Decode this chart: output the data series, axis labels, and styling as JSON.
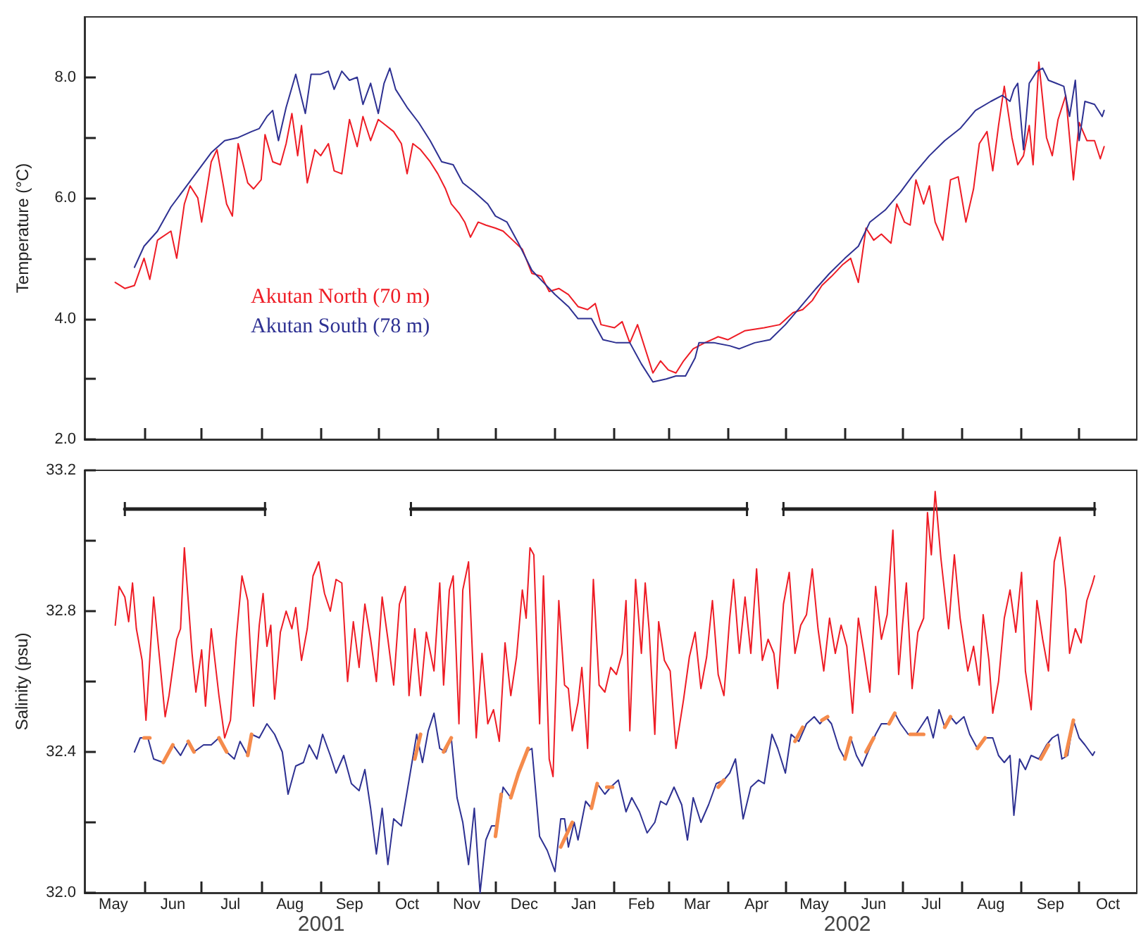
{
  "chart_data": [
    {
      "type": "line",
      "ylabel": "Temperature (°C)",
      "xlim": [
        "2001-05-01",
        "2002-10-31"
      ],
      "ylim": [
        2,
        9
      ],
      "tick_labels": "y",
      "grid": false,
      "legend": "left",
      "marker": "none",
      "line_style": "solid",
      "yticks": [
        {
          "value": 2,
          "label": "2.0"
        },
        {
          "value": 3,
          "label": null
        },
        {
          "value": 4,
          "label": "4.0"
        },
        {
          "value": 5,
          "label": null
        },
        {
          "value": 6,
          "label": "6.0"
        },
        {
          "value": 7,
          "label": null
        },
        {
          "value": 8,
          "label": "8.0"
        }
      ],
      "xticks": [
        {
          "value": "2001-06-01",
          "label": null
        },
        {
          "value": "2001-07-01",
          "label": null
        },
        {
          "value": "2001-08-01",
          "label": null
        },
        {
          "value": "2001-09-01",
          "label": null
        },
        {
          "value": "2001-10-01",
          "label": null
        },
        {
          "value": "2001-11-01",
          "label": null
        },
        {
          "value": "2001-12-01",
          "label": null
        },
        {
          "value": "2002-01-01",
          "label": null
        },
        {
          "value": "2002-02-01",
          "label": null
        },
        {
          "value": "2002-03-01",
          "label": null
        },
        {
          "value": "2002-04-01",
          "label": null
        },
        {
          "value": "2002-05-01",
          "label": null
        },
        {
          "value": "2002-06-01",
          "label": null
        },
        {
          "value": "2002-07-01",
          "label": null
        },
        {
          "value": "2002-08-01",
          "label": null
        },
        {
          "value": "2002-09-01",
          "label": null
        },
        {
          "value": "2002-10-01",
          "label": null
        }
      ],
      "series": [
        {
          "name": "Akutan North (70 m)",
          "color": "#ee1c25",
          "x": [
            "2001-05-17",
            "2001-05-22",
            "2001-05-27",
            "2001-06-01",
            "2001-06-04",
            "2001-06-08",
            "2001-06-15",
            "2001-06-18",
            "2001-06-22",
            "2001-06-25",
            "2001-06-29",
            "2001-07-01",
            "2001-07-06",
            "2001-07-09",
            "2001-07-14",
            "2001-07-17",
            "2001-07-20",
            "2001-07-25",
            "2001-07-28",
            "2001-08-01",
            "2001-08-03",
            "2001-08-07",
            "2001-08-11",
            "2001-08-14",
            "2001-08-17",
            "2001-08-20",
            "2001-08-22",
            "2001-08-25",
            "2001-08-29",
            "2001-09-01",
            "2001-09-05",
            "2001-09-08",
            "2001-09-12",
            "2001-09-16",
            "2001-09-20",
            "2001-09-23",
            "2001-09-27",
            "2001-10-01",
            "2001-10-05",
            "2001-10-09",
            "2001-10-13",
            "2001-10-16",
            "2001-10-19",
            "2001-10-23",
            "2001-10-28",
            "2001-11-01",
            "2001-11-05",
            "2001-11-08",
            "2001-11-12",
            "2001-11-15",
            "2001-11-18",
            "2001-11-22",
            "2001-11-26",
            "2001-12-01",
            "2001-12-05",
            "2001-12-10",
            "2001-12-15",
            "2001-12-20",
            "2001-12-25",
            "2001-12-29",
            "2002-01-03",
            "2002-01-08",
            "2002-01-13",
            "2002-01-18",
            "2002-01-22",
            "2002-01-25",
            "2002-02-01",
            "2002-02-05",
            "2002-02-09",
            "2002-02-13",
            "2002-02-17",
            "2002-02-21",
            "2002-02-25",
            "2002-03-01",
            "2002-03-05",
            "2002-03-09",
            "2002-03-14",
            "2002-03-20",
            "2002-03-27",
            "2002-04-01",
            "2002-04-10",
            "2002-04-20",
            "2002-04-28",
            "2002-05-05",
            "2002-05-10",
            "2002-05-15",
            "2002-05-20",
            "2002-05-25",
            "2002-05-31",
            "2002-06-04",
            "2002-06-08",
            "2002-06-12",
            "2002-06-16",
            "2002-06-20",
            "2002-06-25",
            "2002-06-28",
            "2002-07-02",
            "2002-07-05",
            "2002-07-08",
            "2002-07-12",
            "2002-07-15",
            "2002-07-18",
            "2002-07-22",
            "2002-07-26",
            "2002-07-30",
            "2002-08-03",
            "2002-08-07",
            "2002-08-10",
            "2002-08-14",
            "2002-08-17",
            "2002-08-20",
            "2002-08-23",
            "2002-08-27",
            "2002-08-30",
            "2002-09-02",
            "2002-09-05",
            "2002-09-07",
            "2002-09-10",
            "2002-09-14",
            "2002-09-17",
            "2002-09-20",
            "2002-09-24",
            "2002-09-28",
            "2002-10-01",
            "2002-10-05",
            "2002-10-09",
            "2002-10-12",
            "2002-10-14"
          ],
          "values": [
            4.6,
            4.5,
            4.55,
            5.0,
            4.65,
            5.3,
            5.45,
            5.0,
            5.9,
            6.2,
            6.0,
            5.6,
            6.6,
            6.8,
            5.9,
            5.7,
            6.9,
            6.25,
            6.15,
            6.3,
            7.05,
            6.6,
            6.55,
            6.9,
            7.4,
            6.7,
            7.2,
            6.25,
            6.8,
            6.7,
            6.9,
            6.45,
            6.4,
            7.3,
            6.85,
            7.35,
            6.95,
            7.3,
            7.2,
            7.1,
            6.9,
            6.4,
            6.9,
            6.8,
            6.6,
            6.4,
            6.15,
            5.9,
            5.75,
            5.6,
            5.35,
            5.6,
            5.55,
            5.5,
            5.45,
            5.3,
            5.15,
            4.75,
            4.7,
            4.45,
            4.5,
            4.4,
            4.2,
            4.15,
            4.25,
            3.9,
            3.85,
            3.95,
            3.6,
            3.9,
            3.5,
            3.1,
            3.3,
            3.15,
            3.1,
            3.3,
            3.5,
            3.6,
            3.7,
            3.65,
            3.8,
            3.85,
            3.9,
            4.1,
            4.15,
            4.3,
            4.55,
            4.7,
            4.9,
            5.0,
            4.6,
            5.5,
            5.3,
            5.4,
            5.25,
            5.9,
            5.6,
            5.55,
            6.3,
            5.9,
            6.2,
            5.6,
            5.3,
            6.3,
            6.35,
            5.6,
            6.15,
            6.9,
            7.1,
            6.45,
            7.2,
            7.85,
            7.0,
            6.55,
            6.7,
            7.2,
            6.55,
            8.25,
            7.0,
            6.7,
            7.3,
            7.7,
            6.3,
            7.25,
            6.95,
            6.95,
            6.65,
            6.85
          ]
        },
        {
          "name": "Akutan South (78 m)",
          "color": "#2e3192",
          "x": [
            "2001-05-27",
            "2001-06-01",
            "2001-06-08",
            "2001-06-15",
            "2001-06-22",
            "2001-06-29",
            "2001-07-06",
            "2001-07-13",
            "2001-07-20",
            "2001-07-27",
            "2001-07-31",
            "2001-08-04",
            "2001-08-07",
            "2001-08-10",
            "2001-08-14",
            "2001-08-19",
            "2001-08-24",
            "2001-08-27",
            "2001-09-01",
            "2001-09-05",
            "2001-09-08",
            "2001-09-12",
            "2001-09-16",
            "2001-09-20",
            "2001-09-23",
            "2001-09-27",
            "2001-10-01",
            "2001-10-04",
            "2001-10-07",
            "2001-10-10",
            "2001-10-16",
            "2001-10-22",
            "2001-10-28",
            "2001-11-03",
            "2001-11-09",
            "2001-11-14",
            "2001-11-20",
            "2001-11-27",
            "2001-12-01",
            "2001-12-07",
            "2001-12-13",
            "2001-12-20",
            "2001-12-26",
            "2002-01-01",
            "2002-01-08",
            "2002-01-13",
            "2002-01-20",
            "2002-01-26",
            "2002-02-02",
            "2002-02-09",
            "2002-02-15",
            "2002-02-21",
            "2002-02-28",
            "2002-03-05",
            "2002-03-10",
            "2002-03-15",
            "2002-03-17",
            "2002-03-25",
            "2002-04-02",
            "2002-04-07",
            "2002-04-15",
            "2002-04-23",
            "2002-05-01",
            "2002-05-09",
            "2002-05-17",
            "2002-05-24",
            "2002-06-01",
            "2002-06-08",
            "2002-06-14",
            "2002-06-22",
            "2002-06-30",
            "2002-07-07",
            "2002-07-15",
            "2002-07-23",
            "2002-07-31",
            "2002-08-08",
            "2002-08-16",
            "2002-08-22",
            "2002-08-26",
            "2002-08-28",
            "2002-08-30",
            "2002-09-02",
            "2002-09-05",
            "2002-09-09",
            "2002-09-12",
            "2002-09-15",
            "2002-09-19",
            "2002-09-23",
            "2002-09-26",
            "2002-09-29",
            "2002-10-01",
            "2002-10-04",
            "2002-10-09",
            "2002-10-13",
            "2002-10-14"
          ],
          "values": [
            4.85,
            5.2,
            5.45,
            5.85,
            6.15,
            6.45,
            6.75,
            6.95,
            7.0,
            7.1,
            7.15,
            7.35,
            7.45,
            6.95,
            7.5,
            8.05,
            7.4,
            8.05,
            8.05,
            8.1,
            7.8,
            8.1,
            7.95,
            8.0,
            7.55,
            7.9,
            7.4,
            7.9,
            8.15,
            7.8,
            7.5,
            7.25,
            6.95,
            6.6,
            6.55,
            6.25,
            6.1,
            5.9,
            5.7,
            5.6,
            5.25,
            4.8,
            4.6,
            4.4,
            4.2,
            4.0,
            4.0,
            3.65,
            3.6,
            3.6,
            3.25,
            2.95,
            3.0,
            3.05,
            3.05,
            3.35,
            3.6,
            3.6,
            3.55,
            3.5,
            3.6,
            3.65,
            3.9,
            4.2,
            4.5,
            4.75,
            5.0,
            5.2,
            5.6,
            5.8,
            6.1,
            6.4,
            6.7,
            6.95,
            7.15,
            7.45,
            7.6,
            7.7,
            7.6,
            7.8,
            7.9,
            6.8,
            7.9,
            8.1,
            8.15,
            7.95,
            7.9,
            7.85,
            7.35,
            7.95,
            6.95,
            7.6,
            7.55,
            7.35,
            7.45
          ]
        }
      ]
    },
    {
      "type": "line",
      "ylabel": "Salinity (psu)",
      "xlim": [
        "2001-05-01",
        "2002-10-31"
      ],
      "ylim": [
        32.0,
        33.2
      ],
      "grid": false,
      "marker": "none",
      "line_style": "solid",
      "yticks": [
        {
          "value": 32.0,
          "label": "32.0"
        },
        {
          "value": 32.2,
          "label": null
        },
        {
          "value": 32.4,
          "label": "32.4"
        },
        {
          "value": 32.6,
          "label": null
        },
        {
          "value": 32.8,
          "label": "32.8"
        },
        {
          "value": 33.0,
          "label": null
        },
        {
          "value": 33.2,
          "label": "33.2"
        }
      ],
      "xticks": [
        {
          "value": "2001-06-01",
          "label": null
        },
        {
          "value": "2001-07-01",
          "label": null
        },
        {
          "value": "2001-08-01",
          "label": null
        },
        {
          "value": "2001-09-01",
          "label": null
        },
        {
          "value": "2001-10-01",
          "label": null
        },
        {
          "value": "2001-11-01",
          "label": null
        },
        {
          "value": "2001-12-01",
          "label": null
        },
        {
          "value": "2002-01-01",
          "label": null
        },
        {
          "value": "2002-02-01",
          "label": null
        },
        {
          "value": "2002-03-01",
          "label": null
        },
        {
          "value": "2002-04-01",
          "label": null
        },
        {
          "value": "2002-05-01",
          "label": null
        },
        {
          "value": "2002-06-01",
          "label": null
        },
        {
          "value": "2002-07-01",
          "label": null
        },
        {
          "value": "2002-08-01",
          "label": null
        },
        {
          "value": "2002-09-01",
          "label": null
        },
        {
          "value": "2002-10-01",
          "label": null
        },
        {
          "value": "2001-05-16",
          "label": "May"
        },
        {
          "value": "2001-06-16",
          "label": "Jun"
        },
        {
          "value": "2001-07-16",
          "label": "Jul"
        },
        {
          "value": "2001-08-16",
          "label": "Aug"
        },
        {
          "value": "2001-09-16",
          "label": "Sep"
        },
        {
          "value": "2001-10-16",
          "label": "Oct"
        },
        {
          "value": "2001-11-16",
          "label": "Nov"
        },
        {
          "value": "2001-12-16",
          "label": "Dec"
        },
        {
          "value": "2002-01-16",
          "label": "Jan"
        },
        {
          "value": "2002-02-15",
          "label": "Feb"
        },
        {
          "value": "2002-03-16",
          "label": "Mar"
        },
        {
          "value": "2002-04-16",
          "label": "Apr"
        },
        {
          "value": "2002-05-16",
          "label": "May"
        },
        {
          "value": "2002-06-16",
          "label": "Jun"
        },
        {
          "value": "2002-07-16",
          "label": "Jul"
        },
        {
          "value": "2002-08-16",
          "label": "Aug"
        },
        {
          "value": "2002-09-16",
          "label": "Sep"
        },
        {
          "value": "2002-10-16",
          "label": "Oct"
        }
      ],
      "annotations": [
        "2001",
        "2002"
      ],
      "series": [
        {
          "color": "#222222",
          "x": [
            "2001-05-22",
            "2001-08-03",
            "2001-09-01",
            "2001-10-18",
            "2002-04-11",
            "2002-04-20",
            "2002-04-30",
            "2002-10-09"
          ],
          "values": [
            33.09,
            33.09,
            null,
            33.09,
            33.09,
            null,
            33.09,
            33.09
          ],
          "errors": [
            0.02,
            0.02,
            null,
            0.02,
            0.02,
            null,
            0.02,
            0.02
          ]
        },
        {
          "color": "#ee1c25",
          "x": [
            "2001-05-17",
            "2001-05-19",
            "2001-05-22",
            "2001-05-24",
            "2001-05-26",
            "2001-05-28",
            "2001-05-31",
            "2001-06-02",
            "2001-06-06",
            "2001-06-09",
            "2001-06-12",
            "2001-06-14",
            "2001-06-18",
            "2001-06-20",
            "2001-06-22",
            "2001-06-26",
            "2001-06-28",
            "2001-07-01",
            "2001-07-03",
            "2001-07-06",
            "2001-07-10",
            "2001-07-13",
            "2001-07-16",
            "2001-07-19",
            "2001-07-22",
            "2001-07-25",
            "2001-07-28",
            "2001-07-31",
            "2001-08-02",
            "2001-08-04",
            "2001-08-06",
            "2001-08-08",
            "2001-08-11",
            "2001-08-14",
            "2001-08-17",
            "2001-08-19",
            "2001-08-22",
            "2001-08-25",
            "2001-08-28",
            "2001-08-31",
            "2001-09-03",
            "2001-09-06",
            "2001-09-09",
            "2001-09-12",
            "2001-09-15",
            "2001-09-18",
            "2001-09-21",
            "2001-09-24",
            "2001-09-27",
            "2001-09-30",
            "2001-10-03",
            "2001-10-06",
            "2001-10-09",
            "2001-10-12",
            "2001-10-15",
            "2001-10-17",
            "2001-10-20",
            "2001-10-23",
            "2001-10-26",
            "2001-10-30",
            "2001-11-02",
            "2001-11-04",
            "2001-11-07",
            "2001-11-09",
            "2001-11-12",
            "2001-11-14",
            "2001-11-17",
            "2001-11-19",
            "2001-11-21",
            "2001-11-24",
            "2001-11-27",
            "2001-11-30",
            "2001-12-03",
            "2001-12-06",
            "2001-12-09",
            "2001-12-12",
            "2001-12-15",
            "2001-12-17",
            "2001-12-19",
            "2001-12-21",
            "2001-12-24",
            "2001-12-26",
            "2001-12-29",
            "2001-12-31",
            "2002-01-03",
            "2002-01-06",
            "2002-01-08",
            "2002-01-10",
            "2002-01-13",
            "2002-01-15",
            "2002-01-18",
            "2002-01-21",
            "2002-01-24",
            "2002-01-27",
            "2002-01-30",
            "2002-02-02",
            "2002-02-05",
            "2002-02-07",
            "2002-02-09",
            "2002-02-12",
            "2002-02-15",
            "2002-02-17",
            "2002-02-19",
            "2002-02-22",
            "2002-02-24",
            "2002-02-27",
            "2002-03-02",
            "2002-03-05",
            "2002-03-09",
            "2002-03-12",
            "2002-03-15",
            "2002-03-18",
            "2002-03-21",
            "2002-03-24",
            "2002-03-27",
            "2002-03-30",
            "2002-04-02",
            "2002-04-04",
            "2002-04-07",
            "2002-04-10",
            "2002-04-13",
            "2002-04-16",
            "2002-04-19",
            "2002-04-22",
            "2002-04-25",
            "2002-04-27",
            "2002-04-30",
            "2002-05-03",
            "2002-05-06",
            "2002-05-09",
            "2002-05-12",
            "2002-05-15",
            "2002-05-18",
            "2002-05-21",
            "2002-05-24",
            "2002-05-27",
            "2002-05-30",
            "2002-06-02",
            "2002-06-05",
            "2002-06-08",
            "2002-06-11",
            "2002-06-14",
            "2002-06-17",
            "2002-06-20",
            "2002-06-23",
            "2002-06-26",
            "2002-06-29",
            "2002-07-01",
            "2002-07-03",
            "2002-07-06",
            "2002-07-09",
            "2002-07-12",
            "2002-07-14",
            "2002-07-16",
            "2002-07-18",
            "2002-07-21",
            "2002-07-25",
            "2002-07-28",
            "2002-07-31",
            "2002-08-04",
            "2002-08-07",
            "2002-08-10",
            "2002-08-12",
            "2002-08-15",
            "2002-08-17",
            "2002-08-20",
            "2002-08-23",
            "2002-08-26",
            "2002-08-29",
            "2002-09-01",
            "2002-09-03",
            "2002-09-06",
            "2002-09-09",
            "2002-09-12",
            "2002-09-15",
            "2002-09-18",
            "2002-09-21",
            "2002-09-24",
            "2002-09-26",
            "2002-09-29",
            "2002-10-02",
            "2002-10-05",
            "2002-10-08",
            "2002-10-09"
          ],
          "values": [
            32.76,
            32.87,
            32.84,
            32.77,
            32.88,
            32.75,
            32.66,
            32.49,
            32.84,
            32.67,
            32.5,
            32.56,
            32.72,
            32.75,
            32.98,
            32.68,
            32.57,
            32.69,
            32.53,
            32.75,
            32.56,
            32.44,
            32.49,
            32.72,
            32.9,
            32.83,
            32.53,
            32.76,
            32.85,
            32.7,
            32.76,
            32.55,
            32.74,
            32.8,
            32.75,
            32.81,
            32.66,
            32.75,
            32.9,
            32.94,
            32.85,
            32.8,
            32.89,
            32.88,
            32.6,
            32.77,
            32.64,
            32.82,
            32.72,
            32.6,
            32.84,
            32.72,
            32.59,
            32.82,
            32.87,
            32.56,
            32.75,
            32.56,
            32.74,
            32.63,
            32.88,
            32.59,
            32.86,
            32.9,
            32.48,
            32.86,
            32.94,
            32.68,
            32.44,
            32.68,
            32.48,
            32.52,
            32.43,
            32.71,
            32.56,
            32.67,
            32.86,
            32.78,
            32.98,
            32.96,
            32.48,
            32.9,
            32.38,
            32.33,
            32.83,
            32.59,
            32.58,
            32.46,
            32.54,
            32.64,
            32.41,
            32.89,
            32.59,
            32.57,
            32.64,
            32.62,
            32.68,
            32.83,
            32.46,
            32.89,
            32.68,
            32.88,
            32.75,
            32.45,
            32.77,
            32.66,
            32.63,
            32.41,
            32.55,
            32.67,
            32.74,
            32.58,
            32.67,
            32.83,
            32.62,
            32.56,
            32.78,
            32.89,
            32.68,
            32.84,
            32.68,
            32.92,
            32.66,
            32.72,
            32.68,
            32.58,
            32.82,
            32.91,
            32.68,
            32.76,
            32.79,
            32.92,
            32.75,
            32.63,
            32.78,
            32.68,
            32.76,
            32.7,
            32.51,
            32.78,
            32.68,
            32.57,
            32.87,
            32.72,
            32.79,
            33.03,
            32.62,
            32.76,
            32.88,
            32.58,
            32.74,
            32.78,
            33.08,
            32.96,
            33.14,
            32.95,
            32.75,
            32.96,
            32.78,
            32.63,
            32.7,
            32.59,
            32.79,
            32.66,
            32.51,
            32.6,
            32.78,
            32.86,
            32.74,
            32.91,
            32.63,
            32.52,
            32.83,
            32.72,
            32.63,
            32.94,
            33.01,
            32.86,
            32.68,
            32.75,
            32.71,
            32.83,
            32.88,
            32.9
          ]
        },
        {
          "color": "#2e3192",
          "x": [
            "2001-05-27",
            "2001-05-30",
            "2001-06-03",
            "2001-06-06",
            "2001-06-11",
            "2001-06-16",
            "2001-06-20",
            "2001-06-24",
            "2001-06-27",
            "2001-07-02",
            "2001-07-06",
            "2001-07-10",
            "2001-07-14",
            "2001-07-18",
            "2001-07-21",
            "2001-07-25",
            "2001-07-27",
            "2001-07-31",
            "2001-08-04",
            "2001-08-08",
            "2001-08-12",
            "2001-08-15",
            "2001-08-19",
            "2001-08-23",
            "2001-08-26",
            "2001-08-30",
            "2001-09-02",
            "2001-09-06",
            "2001-09-09",
            "2001-09-13",
            "2001-09-17",
            "2001-09-21",
            "2001-09-24",
            "2001-09-27",
            "2001-09-30",
            "2001-10-03",
            "2001-10-06",
            "2001-10-09",
            "2001-10-13",
            "2001-10-17",
            "2001-10-21",
            "2001-10-24",
            "2001-10-27",
            "2001-10-30",
            "2001-11-02",
            "2001-11-05",
            "2001-11-08",
            "2001-11-11",
            "2001-11-14",
            "2001-11-17",
            "2001-11-20",
            "2001-11-23",
            "2001-11-26",
            "2001-11-29",
            "2001-12-02",
            "2001-12-05",
            "2001-12-09",
            "2001-12-17",
            "2001-12-20",
            "2001-12-24",
            "2001-12-28",
            "2002-01-01",
            "2002-01-04",
            "2002-01-06",
            "2002-01-08",
            "2002-01-11",
            "2002-01-13",
            "2002-01-17",
            "2002-01-20",
            "2002-01-23",
            "2002-01-27",
            "2002-01-30",
            "2002-02-03",
            "2002-02-07",
            "2002-02-10",
            "2002-02-14",
            "2002-02-18",
            "2002-02-22",
            "2002-02-25",
            "2002-02-28",
            "2002-03-04",
            "2002-03-08",
            "2002-03-11",
            "2002-03-14",
            "2002-03-18",
            "2002-03-22",
            "2002-03-26",
            "2002-03-30",
            "2002-04-02",
            "2002-04-05",
            "2002-04-09",
            "2002-04-13",
            "2002-04-17",
            "2002-04-20",
            "2002-04-24",
            "2002-04-27",
            "2002-05-01",
            "2002-05-04",
            "2002-05-08",
            "2002-05-12",
            "2002-05-16",
            "2002-05-19",
            "2002-05-22",
            "2002-05-25",
            "2002-05-29",
            "2002-06-01",
            "2002-06-04",
            "2002-06-07",
            "2002-06-10",
            "2002-06-13",
            "2002-06-17",
            "2002-06-20",
            "2002-06-24",
            "2002-06-27",
            "2002-06-30",
            "2002-07-04",
            "2002-07-08",
            "2002-07-14",
            "2002-07-17",
            "2002-07-20",
            "2002-07-23",
            "2002-07-26",
            "2002-07-29",
            "2002-08-02",
            "2002-08-05",
            "2002-08-09",
            "2002-08-13",
            "2002-08-17",
            "2002-08-20",
            "2002-08-23",
            "2002-08-26",
            "2002-08-28",
            "2002-08-31",
            "2002-09-03",
            "2002-09-06",
            "2002-09-10",
            "2002-09-14",
            "2002-09-17",
            "2002-09-20",
            "2002-09-22",
            "2002-09-25",
            "2002-09-28",
            "2002-10-01",
            "2002-10-04",
            "2002-10-08",
            "2002-10-09"
          ],
          "values": [
            32.4,
            32.44,
            32.44,
            32.38,
            32.37,
            32.42,
            32.39,
            32.43,
            32.4,
            32.42,
            32.42,
            32.44,
            32.4,
            32.38,
            32.43,
            32.39,
            32.45,
            32.44,
            32.48,
            32.45,
            32.4,
            32.28,
            32.36,
            32.37,
            32.42,
            32.38,
            32.45,
            32.39,
            32.34,
            32.39,
            32.31,
            32.29,
            32.35,
            32.24,
            32.11,
            32.24,
            32.08,
            32.21,
            32.19,
            32.32,
            32.45,
            32.37,
            32.46,
            32.51,
            32.41,
            32.4,
            32.44,
            32.27,
            32.2,
            32.08,
            32.24,
            32.0,
            32.15,
            32.19,
            32.19,
            32.3,
            32.27,
            32.4,
            32.41,
            32.16,
            32.12,
            32.06,
            32.21,
            32.21,
            32.13,
            32.2,
            32.15,
            32.26,
            32.24,
            32.31,
            32.28,
            32.3,
            32.32,
            32.23,
            32.27,
            32.23,
            32.17,
            32.2,
            32.26,
            32.25,
            32.3,
            32.25,
            32.15,
            32.27,
            32.2,
            32.25,
            32.31,
            32.32,
            32.34,
            32.38,
            32.21,
            32.3,
            32.32,
            32.31,
            32.45,
            32.41,
            32.34,
            32.45,
            32.43,
            32.48,
            32.5,
            32.48,
            32.5,
            32.48,
            32.41,
            32.38,
            32.44,
            32.39,
            32.36,
            32.4,
            32.45,
            32.48,
            32.48,
            32.51,
            32.48,
            32.45,
            32.45,
            32.5,
            32.44,
            32.52,
            32.47,
            32.5,
            32.48,
            32.5,
            32.45,
            32.41,
            32.44,
            32.44,
            32.39,
            32.37,
            32.39,
            32.22,
            32.38,
            32.35,
            32.39,
            32.38,
            32.42,
            32.44,
            32.45,
            32.38,
            32.39,
            32.49,
            32.44,
            32.42,
            32.39,
            32.4
          ]
        },
        {
          "color": "#f58b4c",
          "x": [
            "2001-06-01",
            "2001-06-04",
            "2001-06-08",
            "2001-06-11",
            "2001-06-16",
            "2001-06-19",
            "2001-06-24",
            "2001-06-27",
            "2001-07-01",
            "2001-07-10",
            "2001-07-14",
            "2001-07-20",
            "2001-07-25",
            "2001-07-27",
            "2001-07-30",
            "2001-10-20",
            "2001-10-23",
            "2001-10-25",
            "2001-11-04",
            "2001-11-08",
            "2001-11-10",
            "2001-12-01",
            "2001-12-04",
            "2001-12-06",
            "2001-12-09",
            "2001-12-13",
            "2001-12-18",
            "2001-12-20",
            "2002-01-04",
            "2002-01-10",
            "2002-01-14",
            "2002-01-20",
            "2002-01-23",
            "2002-01-25",
            "2002-01-28",
            "2002-01-31",
            "2002-02-03",
            "2002-03-27",
            "2002-03-30",
            "2002-04-01",
            "2002-05-06",
            "2002-05-10",
            "2002-05-13",
            "2002-05-20",
            "2002-05-23",
            "2002-05-26",
            "2002-06-01",
            "2002-06-04",
            "2002-06-07",
            "2002-06-12",
            "2002-06-16",
            "2002-06-19",
            "2002-06-24",
            "2002-06-27",
            "2002-07-01",
            "2002-07-05",
            "2002-07-12",
            "2002-07-15",
            "2002-07-23",
            "2002-07-26",
            "2002-07-29",
            "2002-08-09",
            "2002-08-13",
            "2002-08-15",
            "2002-09-11",
            "2002-09-15",
            "2002-09-18",
            "2002-09-24",
            "2002-09-28"
          ],
          "values": [
            32.44,
            32.44,
            null,
            32.37,
            32.42,
            null,
            32.43,
            32.4,
            null,
            32.44,
            32.4,
            null,
            32.39,
            32.45,
            null,
            32.38,
            32.45,
            null,
            32.4,
            32.44,
            null,
            32.16,
            32.28,
            null,
            32.27,
            32.34,
            32.41,
            null,
            32.13,
            32.2,
            null,
            32.24,
            32.31,
            null,
            32.3,
            32.3,
            null,
            32.3,
            32.32,
            null,
            32.43,
            32.47,
            null,
            32.49,
            32.5,
            null,
            32.38,
            32.44,
            null,
            32.4,
            32.44,
            null,
            32.48,
            32.51,
            null,
            32.45,
            32.45,
            null,
            32.47,
            32.5,
            null,
            32.41,
            32.44,
            null,
            32.38,
            32.42,
            null,
            32.39,
            32.49
          ]
        }
      ]
    }
  ]
}
